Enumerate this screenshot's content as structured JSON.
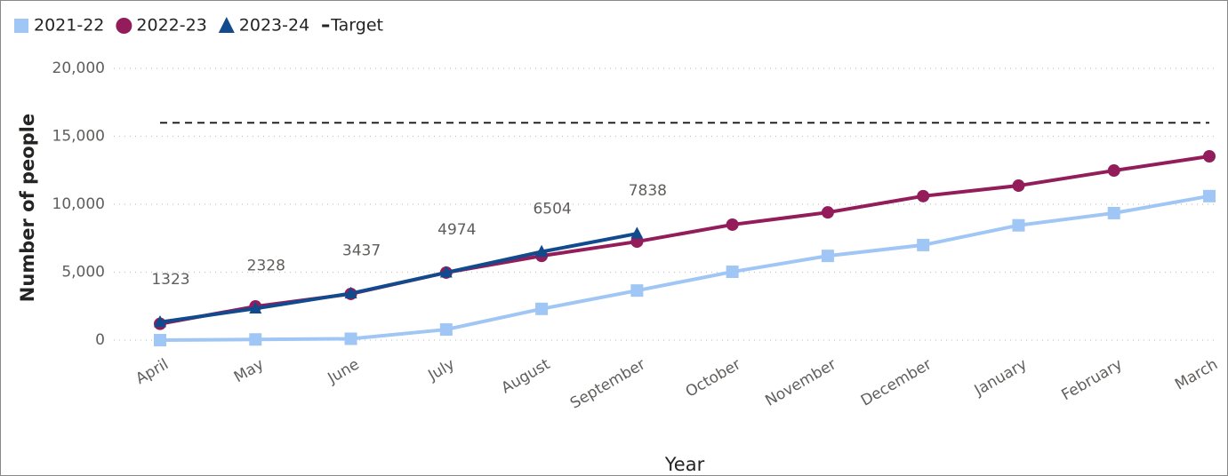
{
  "chart_data": {
    "type": "line",
    "y_label": "Number of people",
    "x_label": "Year",
    "categories": [
      "April",
      "May",
      "June",
      "July",
      "August",
      "September",
      "October",
      "November",
      "December",
      "January",
      "February",
      "March"
    ],
    "series": [
      {
        "name": "2021-22",
        "color": "#9fc6f4",
        "marker": "square",
        "values": [
          0,
          50,
          100,
          780,
          2300,
          3650,
          5030,
          6200,
          7000,
          8450,
          9350,
          10600
        ]
      },
      {
        "name": "2022-23",
        "color": "#931c5a",
        "marker": "circle",
        "values": [
          1200,
          2480,
          3400,
          4970,
          6200,
          7250,
          8500,
          9400,
          10600,
          11370,
          12480,
          13530
        ]
      },
      {
        "name": "2023-24",
        "color": "#124b8d",
        "marker": "triangle",
        "data_labels": true,
        "values": [
          1323,
          2328,
          3437,
          4974,
          6504,
          7838,
          null,
          null,
          null,
          null,
          null,
          null
        ]
      },
      {
        "name": "Target",
        "color": "#252423",
        "marker": "dash",
        "dashed": true,
        "values": [
          16000,
          16000,
          16000,
          16000,
          16000,
          16000,
          16000,
          16000,
          16000,
          16000,
          16000,
          16000
        ]
      }
    ],
    "ylim": [
      0,
      20000
    ],
    "yticks": [
      0,
      {
        "value": 5000,
        "label": "5,000"
      },
      {
        "value": 10000,
        "label": "10,000"
      },
      {
        "value": 15000,
        "label": "15,000"
      },
      {
        "value": 20000,
        "label": "20,000"
      }
    ],
    "grid": true,
    "legend": "top-left"
  }
}
